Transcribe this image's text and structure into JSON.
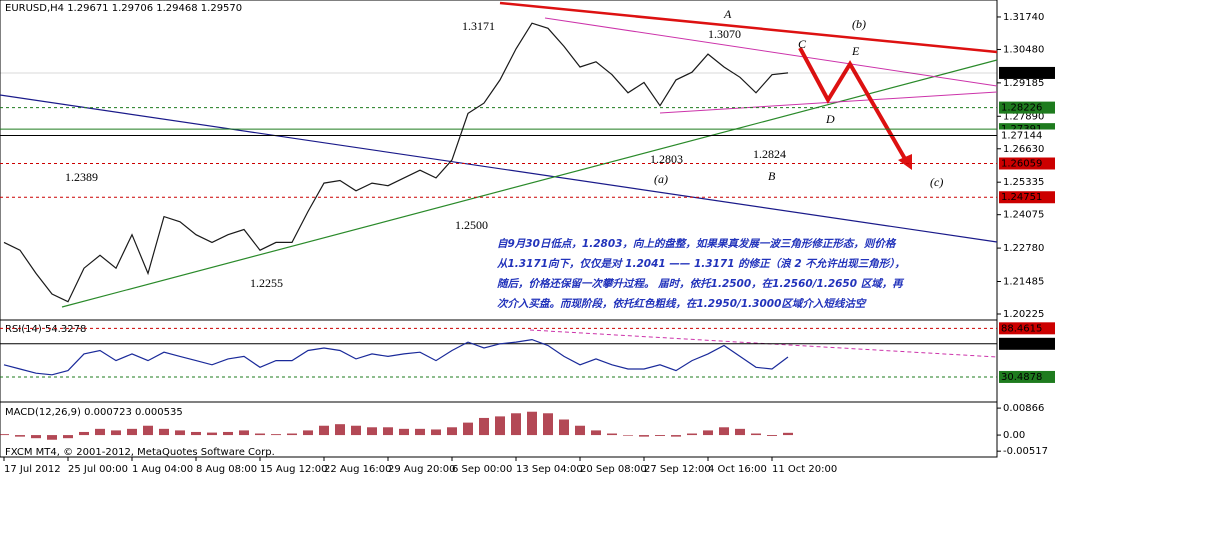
{
  "chart_data": [
    {
      "type": "line",
      "title": "EURUSD,H4  1.29671 1.29706 1.29468 1.29570",
      "categories": [
        "17 Jul 2012",
        null,
        null,
        null,
        "25 Jul 00:00",
        null,
        null,
        null,
        "1 Aug 04:00",
        null,
        null,
        null,
        "8 Aug 08:00",
        null,
        null,
        null,
        "15 Aug 12:00",
        null,
        null,
        null,
        "22 Aug 16:00",
        null,
        null,
        null,
        "29 Aug 20:00",
        null,
        null,
        null,
        "6 Sep 00:00",
        null,
        null,
        null,
        "13 Sep 04:00",
        null,
        null,
        null,
        "20 Sep 08:00",
        null,
        null,
        null,
        "27 Sep 12:00",
        null,
        null,
        null,
        "4 Oct 16:00",
        null,
        null,
        null,
        "11 Oct 20:00",
        null
      ],
      "values": [
        1.23,
        1.227,
        1.218,
        1.21,
        1.207,
        1.22,
        1.225,
        1.22,
        1.233,
        1.218,
        1.24,
        1.238,
        1.233,
        1.23,
        1.233,
        1.235,
        1.227,
        1.23,
        1.23,
        1.242,
        1.253,
        1.254,
        1.25,
        1.253,
        1.252,
        1.255,
        1.258,
        1.255,
        1.262,
        1.28,
        1.284,
        1.293,
        1.305,
        1.315,
        1.313,
        1.306,
        1.298,
        1.3,
        1.295,
        1.288,
        1.292,
        1.283,
        1.293,
        1.296,
        1.303,
        1.298,
        1.294,
        1.288,
        1.295,
        1.2957
      ],
      "color": "#1a1a1a",
      "ylim": [
        1.2007,
        1.3232
      ],
      "yticks": [
        {
          "value": 1.3174,
          "label": "1.31740"
        },
        {
          "value": 1.3048,
          "label": "1.30480"
        },
        1.29185,
        {
          "value": 1.2789,
          "label": "1.27890"
        },
        {
          "value": 1.2663,
          "label": "1.26630"
        },
        1.25335,
        1.24075,
        {
          "value": 1.2278,
          "label": "1.22780"
        },
        1.21485,
        1.20225
      ],
      "levels": [
        {
          "value": 1.2957,
          "label": "1.29570",
          "color": "#000000"
        },
        {
          "value": 1.28226,
          "color": "#1e7b1e"
        },
        {
          "value": 1.27391,
          "color": "#1e7b1e"
        },
        {
          "value": 1.27144,
          "color": "#000000"
        },
        {
          "value": 1.26059,
          "color": "#cc0000"
        },
        {
          "value": 1.24751,
          "color": "#cc0000"
        }
      ],
      "annotations": [
        "1.3171",
        "A",
        "1.3070",
        "(b)",
        "C",
        "E",
        "D",
        "1.2803",
        "1.2824",
        "(a)",
        "B",
        "(c)",
        "1.2389",
        "1.2500",
        "1.2255"
      ],
      "note_lines": [
        "自9月30日低点，1.2803，向上的盘整，如果果真发展一波三角形修正形态，则价格",
        "从1.3171向下，仅仅是对 1.2041 —— 1.3171 的修正（浪 2 不允许出现三角形），",
        "随后，价格还保留一次攀升过程。 届时，依托1.2500，在1.2560/1.2650 区域，再",
        "次介入买盘。而现阶段，依托红色粗线，在1.2950/1.3000区域介入短线沽空"
      ],
      "footer": "FXCM MT4, © 2001-2012, MetaQuotes Software Corp."
    },
    {
      "type": "line",
      "title": "RSI(14) 54.3278",
      "values": [
        45,
        40,
        35,
        33,
        38,
        58,
        62,
        50,
        58,
        50,
        60,
        55,
        50,
        45,
        52,
        55,
        42,
        50,
        50,
        62,
        65,
        62,
        52,
        58,
        55,
        58,
        60,
        50,
        62,
        72,
        65,
        70,
        72,
        75,
        68,
        55,
        45,
        52,
        45,
        40,
        40,
        45,
        38,
        50,
        58,
        68,
        55,
        42,
        40,
        54.3278
      ],
      "color": "#1a2a9a",
      "ylim": [
        3,
        96
      ],
      "levels": [
        {
          "value": 88.4615,
          "color": "#cc0000"
        },
        {
          "value": 70,
          "label": "70.0000",
          "color": "#000000"
        },
        {
          "value": 30.4878,
          "color": "#1e7b1e"
        }
      ]
    },
    {
      "type": "bar",
      "title": "MACD(12,26,9) 0.000723 0.000535",
      "values": [
        0.0003,
        -0.0005,
        -0.001,
        -0.0015,
        -0.001,
        0.001,
        0.002,
        0.0015,
        0.002,
        0.003,
        0.002,
        0.0015,
        0.001,
        0.0008,
        0.001,
        0.0015,
        0.0005,
        0.0003,
        0.0005,
        0.0015,
        0.003,
        0.0035,
        0.003,
        0.0025,
        0.0025,
        0.002,
        0.002,
        0.0018,
        0.0025,
        0.004,
        0.0055,
        0.006,
        0.007,
        0.0075,
        0.007,
        0.005,
        0.003,
        0.0015,
        0.0005,
        -0.0002,
        -0.0005,
        -0.0003,
        -0.0005,
        0.0005,
        0.0015,
        0.0025,
        0.002,
        0.0005,
        -0.0003,
        0.000723
      ],
      "color": "#a01a2a",
      "ylim": [
        -0.0064,
        0.0103
      ],
      "yticks": [
        0.00866,
        {
          "value": 0,
          "label": "0.00"
        },
        -0.00517
      ]
    }
  ]
}
